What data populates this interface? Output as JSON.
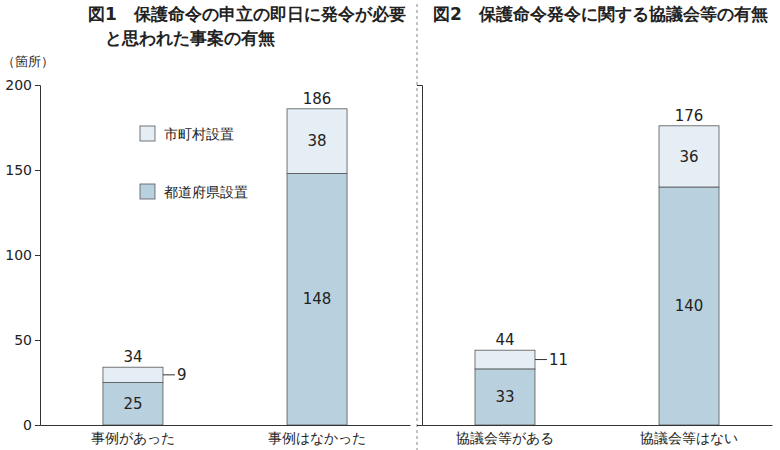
{
  "chart_data": [
    {
      "type": "bar",
      "stacked": true,
      "data_labels": true,
      "legend": "top-left",
      "title": "図1　保護命令の申立の即日に発令が必要\n　と思われた事案の有無",
      "ylabel": "（箇所）",
      "categories": [
        "事例があった",
        "事例はなかった"
      ],
      "series": [
        {
          "name": "都道府県設置",
          "color": "#b9d1df",
          "values": [
            25,
            148
          ]
        },
        {
          "name": "市町村設置",
          "color": "#e4eef4",
          "values": [
            9,
            38
          ]
        }
      ],
      "totals": [
        34,
        186
      ],
      "ylim": [
        0,
        200
      ],
      "yticks": [
        0,
        50,
        100,
        150,
        200
      ]
    },
    {
      "type": "bar",
      "stacked": true,
      "data_labels": true,
      "tick_labels": "x",
      "title": "図2　保護命令発令に関する協議会等の有無",
      "categories": [
        "協議会等がある",
        "協議会等はない"
      ],
      "series": [
        {
          "color": "#b9d1df",
          "values": [
            33,
            140
          ]
        },
        {
          "color": "#e4eef4",
          "values": [
            11,
            36
          ]
        }
      ],
      "totals": [
        44,
        176
      ],
      "ylim": [
        0,
        200
      ]
    }
  ]
}
